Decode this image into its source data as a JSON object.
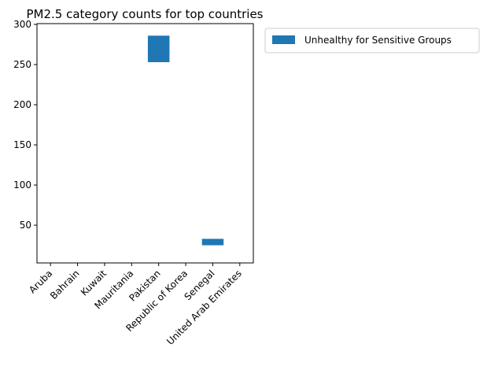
{
  "chart_data": {
    "type": "bar",
    "title": "PM2.5 category counts for top countries",
    "xlabel": "",
    "ylabel": "",
    "categories": [
      "Aruba",
      "Bahrain",
      "Kuwait",
      "Mauritania",
      "Pakistan",
      "Republic of Korea",
      "Senegal",
      "United Arab Emirates"
    ],
    "series": [
      {
        "name": "Unhealthy for Sensitive Groups",
        "color": "#1f77b4",
        "bottoms": [
          null,
          null,
          null,
          null,
          253,
          null,
          25,
          null
        ],
        "tops": [
          null,
          null,
          null,
          null,
          286,
          null,
          33,
          null
        ]
      }
    ],
    "ylim": [
      3,
      301
    ],
    "yticks": [
      50,
      100,
      150,
      200,
      250,
      300
    ],
    "grid": false,
    "legend_position": "outside-top-right"
  }
}
